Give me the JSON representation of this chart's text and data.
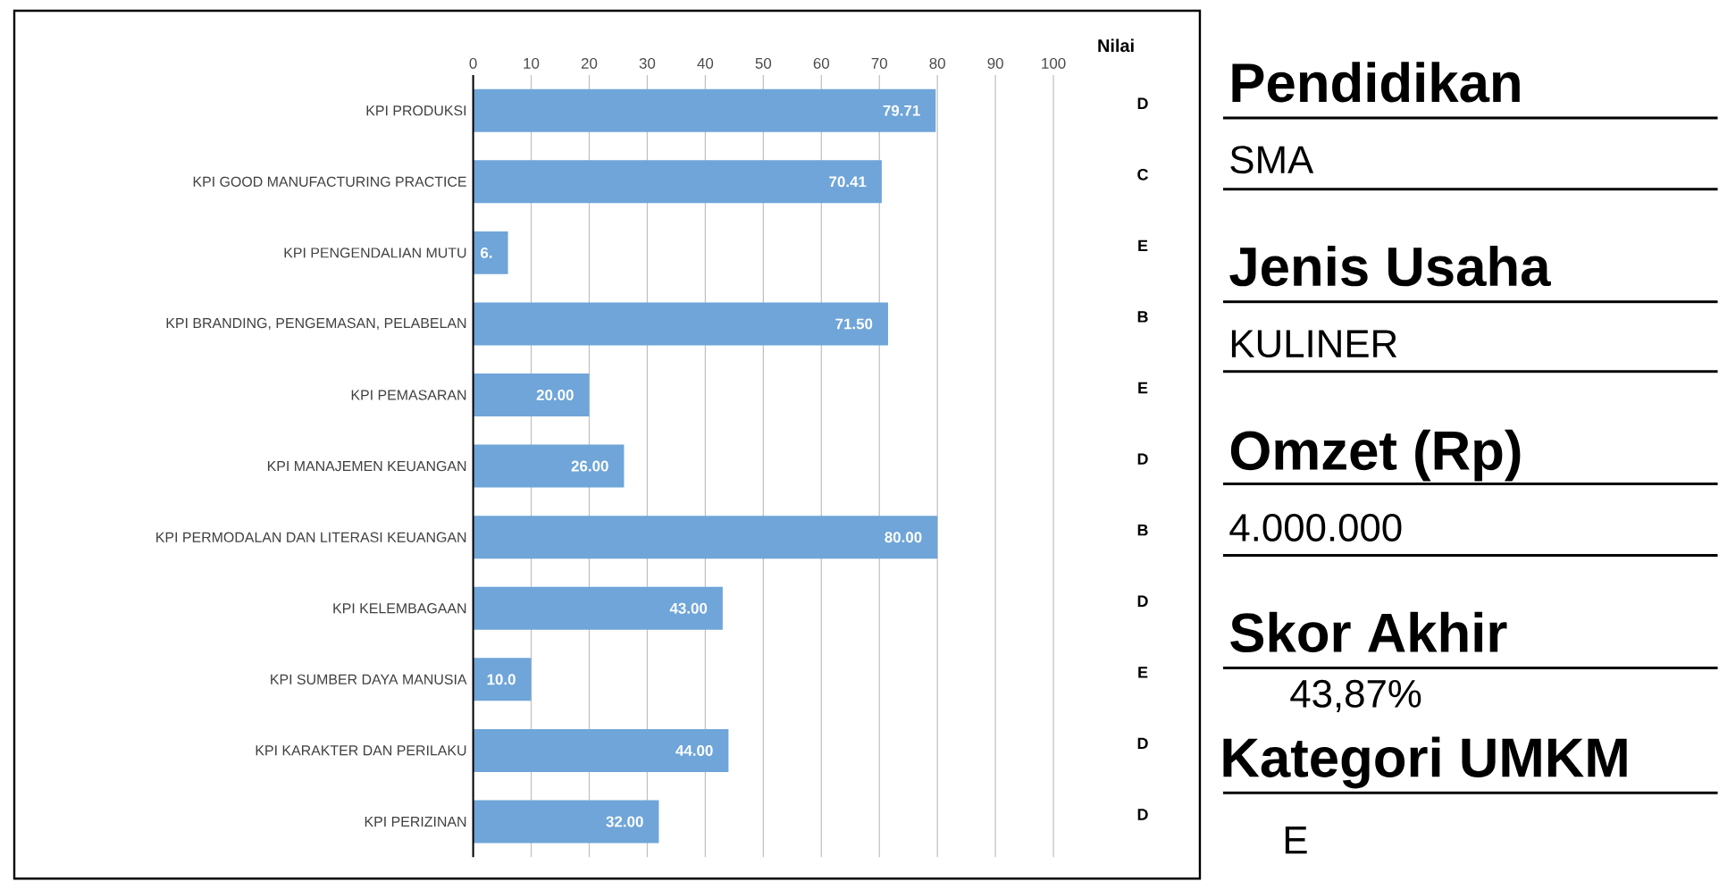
{
  "chart_data": [
    {
      "type": "bar",
      "orientation": "horizontal",
      "categories": [
        "KPI PRODUKSI",
        "KPI GOOD MANUFACTURING PRACTICE",
        "KPI PENGENDALIAN MUTU",
        "KPI BRANDING, PENGEMASAN, PELABELAN",
        "KPI PEMASARAN",
        "KPI MANAJEMEN KEUANGAN",
        "KPI PERMODALAN DAN LITERASI KEUANGAN",
        "KPI KELEMBAGAAN",
        "KPI SUMBER DAYA MANUSIA",
        "KPI KARAKTER DAN PERILAKU",
        "KPI PERIZINAN"
      ],
      "values": [
        79.71,
        70.41,
        6,
        71.5,
        20,
        26,
        80,
        43,
        10,
        44,
        32
      ],
      "value_labels": [
        "79.71",
        "70.41",
        "6.",
        "71.50",
        "20.00",
        "26.00",
        "80.00",
        "43.00",
        "10.0",
        "44.00",
        "32.00"
      ],
      "color": "#6fa5d8",
      "xlim": [
        0,
        100
      ],
      "xticks": [
        0,
        10,
        20,
        30,
        40,
        50,
        60,
        70,
        80,
        90,
        100
      ],
      "grid": "x",
      "annotations": [
        "Nilai",
        "D",
        "C",
        "E",
        "B",
        "E",
        "D",
        "B",
        "D",
        "E",
        "D",
        "D"
      ]
    },
    {
      "type": "other",
      "annotations": [
        "Pendidikan",
        "SMA",
        "Jenis Usaha",
        "KULINER",
        "Omzet (Rp)",
        "4.000.000",
        "Skor Akhir",
        "43,87%",
        "Kategori UMKM",
        "E"
      ]
    }
  ]
}
